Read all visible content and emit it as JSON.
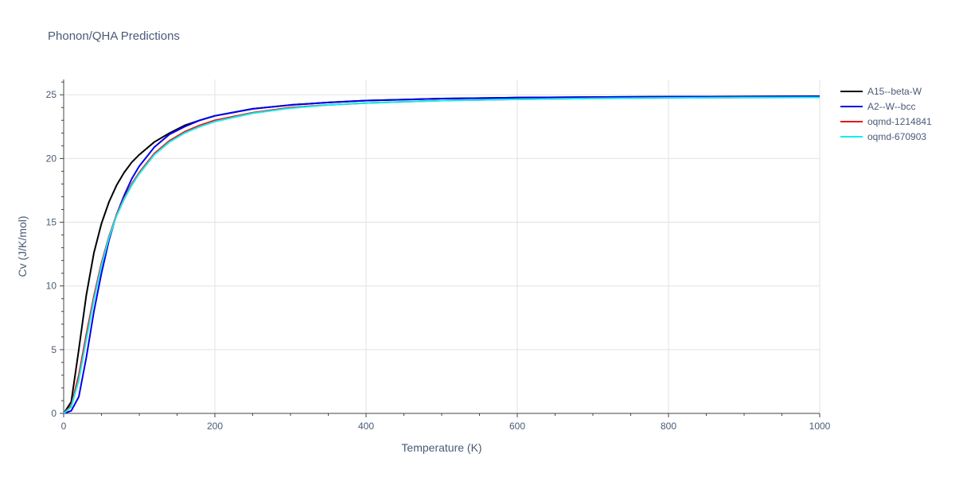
{
  "chart_data": {
    "type": "line",
    "title": "Phonon/QHA Predictions",
    "xlabel": "Temperature (K)",
    "ylabel": "Cv (J/K/mol)",
    "xlim": [
      0,
      1000
    ],
    "ylim": [
      0,
      26.2
    ],
    "xticks": [
      0,
      200,
      400,
      600,
      800,
      1000
    ],
    "yticks": [
      0,
      5,
      10,
      15,
      20,
      25
    ],
    "grid": true,
    "legend_position": "right",
    "series": [
      {
        "name": "A15--beta-W",
        "color": "#000000",
        "x": [
          0,
          10,
          20,
          30,
          40,
          50,
          60,
          70,
          80,
          90,
          100,
          120,
          140,
          160,
          180,
          200,
          250,
          300,
          350,
          400,
          500,
          600,
          700,
          800,
          900,
          1000
        ],
        "y": [
          0,
          0.9,
          5.0,
          9.3,
          12.6,
          14.9,
          16.6,
          17.9,
          18.9,
          19.7,
          20.3,
          21.3,
          22.0,
          22.6,
          23.0,
          23.35,
          23.9,
          24.2,
          24.4,
          24.55,
          24.7,
          24.78,
          24.82,
          24.85,
          24.87,
          24.88
        ]
      },
      {
        "name": "A2--W--bcc",
        "color": "#0000ee",
        "x": [
          0,
          10,
          20,
          30,
          40,
          50,
          60,
          70,
          80,
          90,
          100,
          120,
          140,
          160,
          180,
          200,
          250,
          300,
          350,
          400,
          500,
          600,
          700,
          800,
          900,
          1000
        ],
        "y": [
          0,
          0.2,
          1.3,
          4.4,
          8.0,
          11.0,
          13.6,
          15.6,
          17.1,
          18.4,
          19.4,
          20.9,
          21.9,
          22.5,
          23.0,
          23.35,
          23.9,
          24.2,
          24.4,
          24.55,
          24.7,
          24.78,
          24.82,
          24.85,
          24.87,
          24.88
        ]
      },
      {
        "name": "oqmd-1214841",
        "color": "#ee1111",
        "x": [
          0,
          10,
          20,
          30,
          40,
          50,
          60,
          70,
          80,
          90,
          100,
          120,
          140,
          160,
          180,
          200,
          250,
          300,
          350,
          400,
          500,
          600,
          700,
          800,
          900,
          1000
        ],
        "y": [
          0,
          0.6,
          3.0,
          6.2,
          9.2,
          11.8,
          13.9,
          15.6,
          16.9,
          18.0,
          18.9,
          20.4,
          21.4,
          22.1,
          22.6,
          23.0,
          23.6,
          24.0,
          24.2,
          24.35,
          24.55,
          24.65,
          24.72,
          24.76,
          24.79,
          24.8
        ]
      },
      {
        "name": "oqmd-670903",
        "color": "#11eeee",
        "x": [
          0,
          10,
          20,
          30,
          40,
          50,
          60,
          70,
          80,
          90,
          100,
          120,
          140,
          160,
          180,
          200,
          250,
          300,
          350,
          400,
          500,
          600,
          700,
          800,
          900,
          1000
        ],
        "y": [
          0,
          0.5,
          2.6,
          5.8,
          8.9,
          11.6,
          13.8,
          15.5,
          16.8,
          17.9,
          18.8,
          20.3,
          21.3,
          22.0,
          22.5,
          22.9,
          23.55,
          23.95,
          24.2,
          24.35,
          24.55,
          24.65,
          24.72,
          24.76,
          24.79,
          24.8
        ]
      }
    ]
  }
}
